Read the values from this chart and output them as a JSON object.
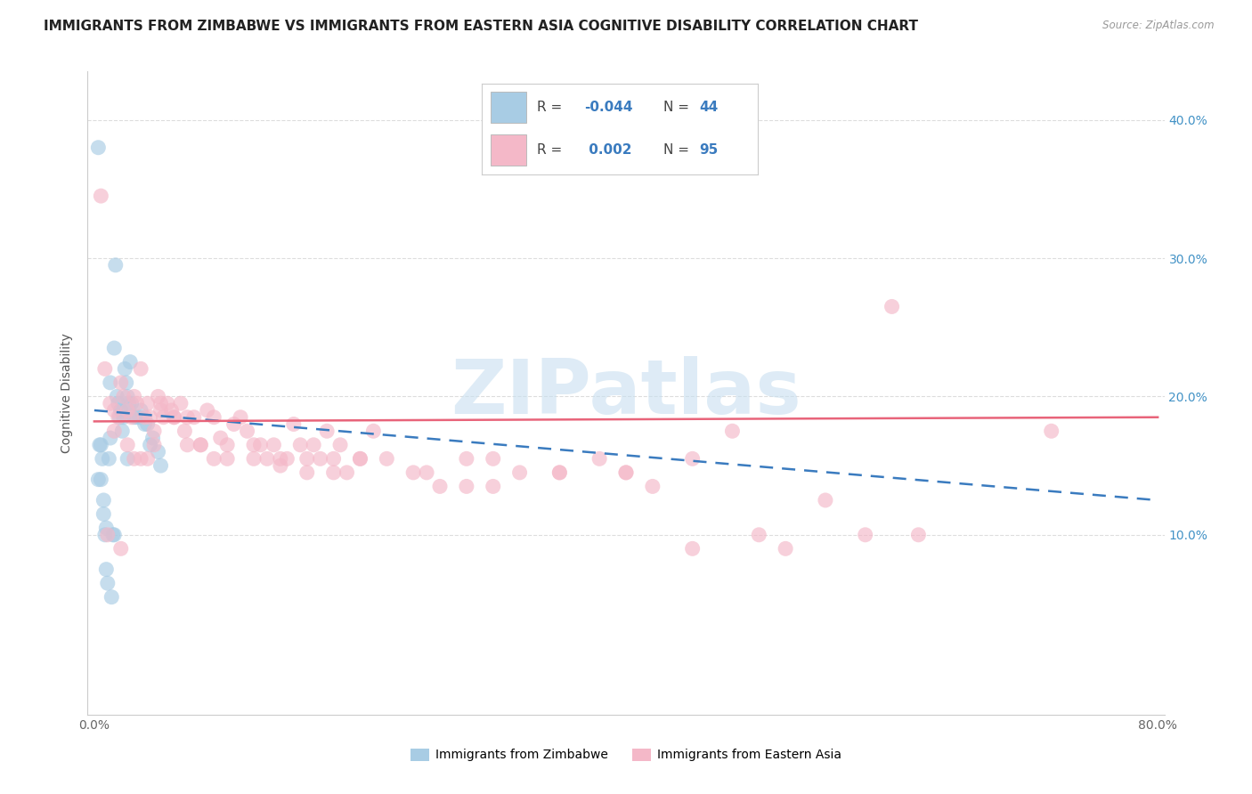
{
  "title": "IMMIGRANTS FROM ZIMBABWE VS IMMIGRANTS FROM EASTERN ASIA COGNITIVE DISABILITY CORRELATION CHART",
  "source": "Source: ZipAtlas.com",
  "ylabel": "Cognitive Disability",
  "xlim": [
    -0.005,
    0.805
  ],
  "ylim": [
    -0.03,
    0.435
  ],
  "xtick_positions": [
    0.0,
    0.1,
    0.2,
    0.3,
    0.4,
    0.5,
    0.6,
    0.7,
    0.8
  ],
  "xticklabels": [
    "0.0%",
    "",
    "",
    "",
    "",
    "",
    "",
    "",
    "80.0%"
  ],
  "ytick_positions": [
    0.1,
    0.2,
    0.3,
    0.4
  ],
  "ytick_right_labels": [
    "10.0%",
    "20.0%",
    "30.0%",
    "40.0%"
  ],
  "legend_R_blue": "-0.044",
  "legend_N_blue": "44",
  "legend_R_pink": "0.002",
  "legend_N_pink": "95",
  "blue_color": "#a8cce4",
  "pink_color": "#f4b8c8",
  "blue_line_color": "#3a7bbf",
  "pink_line_color": "#e8647a",
  "watermark_color": "#c8dff0",
  "title_fontsize": 11,
  "label_fontsize": 10,
  "tick_fontsize": 10,
  "blue_scatter_x": [
    0.003,
    0.004,
    0.005,
    0.006,
    0.007,
    0.008,
    0.009,
    0.01,
    0.011,
    0.012,
    0.013,
    0.014,
    0.015,
    0.016,
    0.017,
    0.018,
    0.019,
    0.02,
    0.021,
    0.022,
    0.023,
    0.024,
    0.025,
    0.026,
    0.027,
    0.028,
    0.03,
    0.032,
    0.034,
    0.035,
    0.038,
    0.04,
    0.042,
    0.044,
    0.048,
    0.05,
    0.003,
    0.005,
    0.007,
    0.009,
    0.012,
    0.015,
    0.02,
    0.025
  ],
  "blue_scatter_y": [
    0.38,
    0.165,
    0.165,
    0.155,
    0.115,
    0.1,
    0.075,
    0.065,
    0.155,
    0.17,
    0.055,
    0.1,
    0.1,
    0.295,
    0.2,
    0.195,
    0.185,
    0.19,
    0.175,
    0.185,
    0.22,
    0.21,
    0.2,
    0.195,
    0.225,
    0.195,
    0.185,
    0.185,
    0.185,
    0.19,
    0.18,
    0.18,
    0.165,
    0.17,
    0.16,
    0.15,
    0.14,
    0.14,
    0.125,
    0.105,
    0.21,
    0.235,
    0.19,
    0.155
  ],
  "pink_scatter_x": [
    0.008,
    0.012,
    0.015,
    0.018,
    0.02,
    0.022,
    0.025,
    0.028,
    0.03,
    0.032,
    0.035,
    0.038,
    0.04,
    0.042,
    0.045,
    0.048,
    0.05,
    0.052,
    0.055,
    0.058,
    0.06,
    0.065,
    0.068,
    0.07,
    0.075,
    0.08,
    0.085,
    0.09,
    0.095,
    0.1,
    0.105,
    0.11,
    0.115,
    0.12,
    0.125,
    0.13,
    0.135,
    0.14,
    0.145,
    0.15,
    0.155,
    0.16,
    0.165,
    0.17,
    0.175,
    0.18,
    0.185,
    0.19,
    0.2,
    0.21,
    0.22,
    0.24,
    0.26,
    0.28,
    0.3,
    0.32,
    0.35,
    0.38,
    0.4,
    0.42,
    0.45,
    0.48,
    0.55,
    0.6,
    0.005,
    0.01,
    0.015,
    0.02,
    0.025,
    0.03,
    0.035,
    0.04,
    0.045,
    0.05,
    0.06,
    0.07,
    0.08,
    0.09,
    0.1,
    0.12,
    0.14,
    0.16,
    0.18,
    0.2,
    0.25,
    0.28,
    0.3,
    0.35,
    0.4,
    0.45,
    0.5,
    0.52,
    0.58,
    0.62,
    0.72
  ],
  "pink_scatter_y": [
    0.22,
    0.195,
    0.19,
    0.185,
    0.21,
    0.2,
    0.19,
    0.185,
    0.2,
    0.195,
    0.22,
    0.185,
    0.195,
    0.185,
    0.175,
    0.2,
    0.19,
    0.185,
    0.195,
    0.19,
    0.185,
    0.195,
    0.175,
    0.185,
    0.185,
    0.165,
    0.19,
    0.185,
    0.17,
    0.165,
    0.18,
    0.185,
    0.175,
    0.165,
    0.165,
    0.155,
    0.165,
    0.15,
    0.155,
    0.18,
    0.165,
    0.155,
    0.165,
    0.155,
    0.175,
    0.155,
    0.165,
    0.145,
    0.155,
    0.175,
    0.155,
    0.145,
    0.135,
    0.155,
    0.155,
    0.145,
    0.145,
    0.155,
    0.145,
    0.135,
    0.155,
    0.175,
    0.125,
    0.265,
    0.345,
    0.1,
    0.175,
    0.09,
    0.165,
    0.155,
    0.155,
    0.155,
    0.165,
    0.195,
    0.185,
    0.165,
    0.165,
    0.155,
    0.155,
    0.155,
    0.155,
    0.145,
    0.145,
    0.155,
    0.145,
    0.135,
    0.135,
    0.145,
    0.145,
    0.09,
    0.1,
    0.09,
    0.1,
    0.1,
    0.175
  ],
  "blue_trend_x0": 0.0,
  "blue_trend_x1": 0.8,
  "blue_trend_y0": 0.19,
  "blue_trend_y1": 0.125,
  "pink_trend_x0": 0.0,
  "pink_trend_x1": 0.8,
  "pink_trend_y0": 0.182,
  "pink_trend_y1": 0.185
}
